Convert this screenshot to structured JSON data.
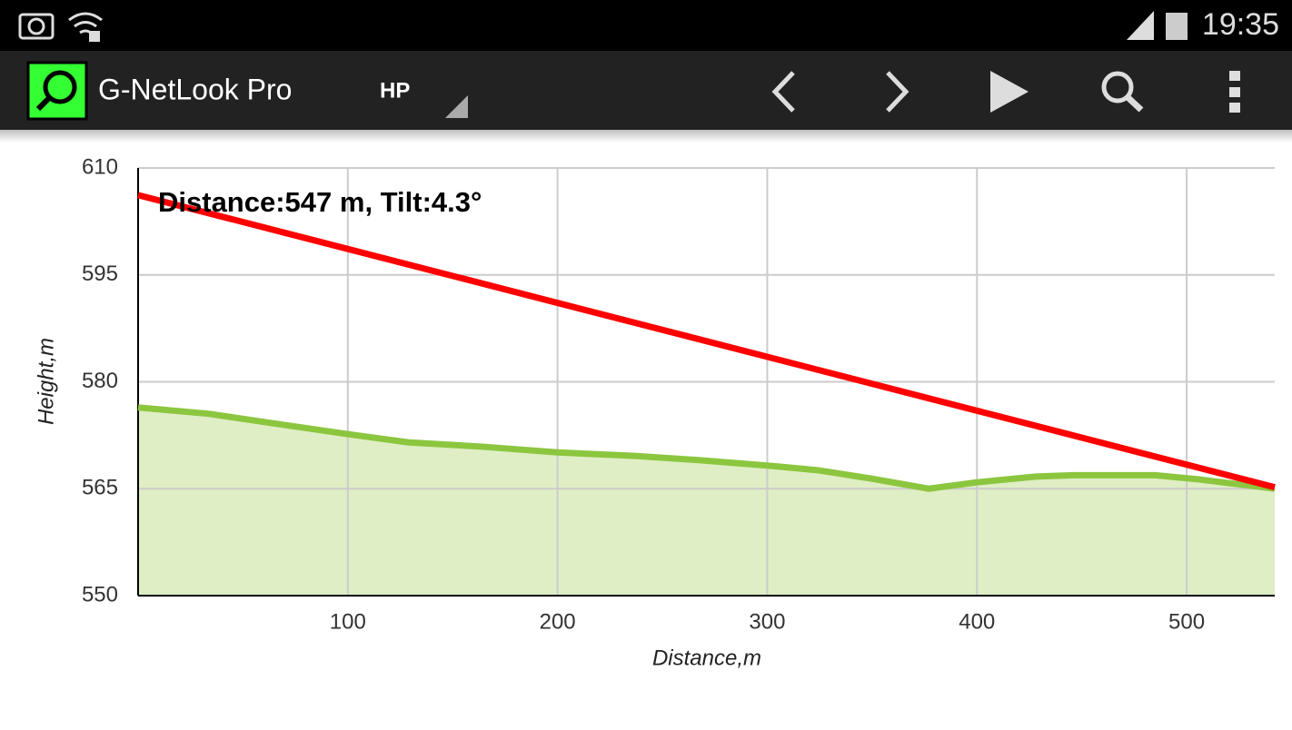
{
  "status_bar": {
    "time": "19:35"
  },
  "app_bar": {
    "title": "G-NetLook Pro",
    "spinner": "HP"
  },
  "chart_data": {
    "type": "line",
    "annotation": "Distance:547 m, Tilt:4.3°",
    "x_label": "Distance,m",
    "y_label": "Height,m",
    "xlim": [
      0,
      542
    ],
    "ylim": [
      550,
      610
    ],
    "xticks": [
      100,
      200,
      300,
      400,
      500
    ],
    "yticks": [
      550,
      565,
      580,
      595,
      610
    ],
    "grid": true,
    "series": [
      {
        "color": "#8cc63f",
        "fill": "#dfeec4",
        "x": [
          0,
          34,
          64,
          99,
          129,
          164,
          200,
          237,
          268,
          302,
          324,
          350,
          377,
          400,
          428,
          446,
          485,
          506,
          542
        ],
        "values": [
          576.4,
          575.5,
          574.2,
          572.7,
          571.5,
          570.9,
          570.1,
          569.6,
          569.0,
          568.2,
          567.6,
          566.4,
          565.0,
          565.9,
          566.7,
          566.9,
          566.9,
          566.3,
          565.0
        ]
      },
      {
        "color": "#ff0000",
        "x": [
          0,
          542
        ],
        "values": [
          606.2,
          565.2
        ]
      }
    ]
  }
}
